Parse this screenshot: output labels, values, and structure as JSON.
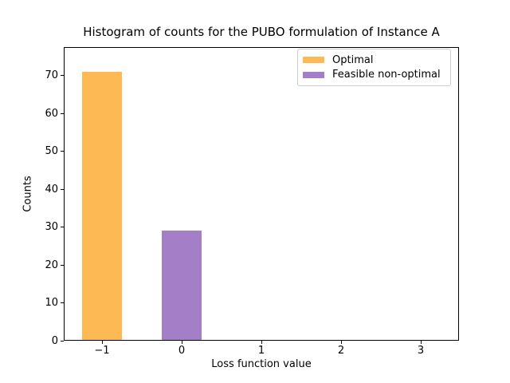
{
  "figure": {
    "title": "Histogram of counts for the PUBO formulation of Instance A"
  },
  "chart_data": {
    "type": "bar",
    "title": "Histogram of counts for the PUBO formulation of Instance A",
    "xlabel": "Loss function value",
    "ylabel": "Counts",
    "series": [
      {
        "name": "Optimal",
        "color": "#fdb954",
        "x": [
          -1
        ],
        "values": [
          71
        ]
      },
      {
        "name": "Feasible non-optimal",
        "color": "#a57ec8",
        "x": [
          0
        ],
        "values": [
          29
        ]
      }
    ],
    "bar_width": 0.5,
    "xlim": [
      -1.48,
      3.48
    ],
    "ylim": [
      0,
      77.5
    ],
    "xticks": [
      {
        "value": -1,
        "label": "−1"
      },
      {
        "value": 0,
        "label": "0"
      },
      {
        "value": 1,
        "label": "1"
      },
      {
        "value": 2,
        "label": "2"
      },
      {
        "value": 3,
        "label": "3"
      }
    ],
    "yticks": [
      0,
      10,
      20,
      30,
      40,
      50,
      60,
      70
    ],
    "legend_position": "upper right",
    "grid": false,
    "background": "#ffffff",
    "spine_color": "#000000"
  }
}
